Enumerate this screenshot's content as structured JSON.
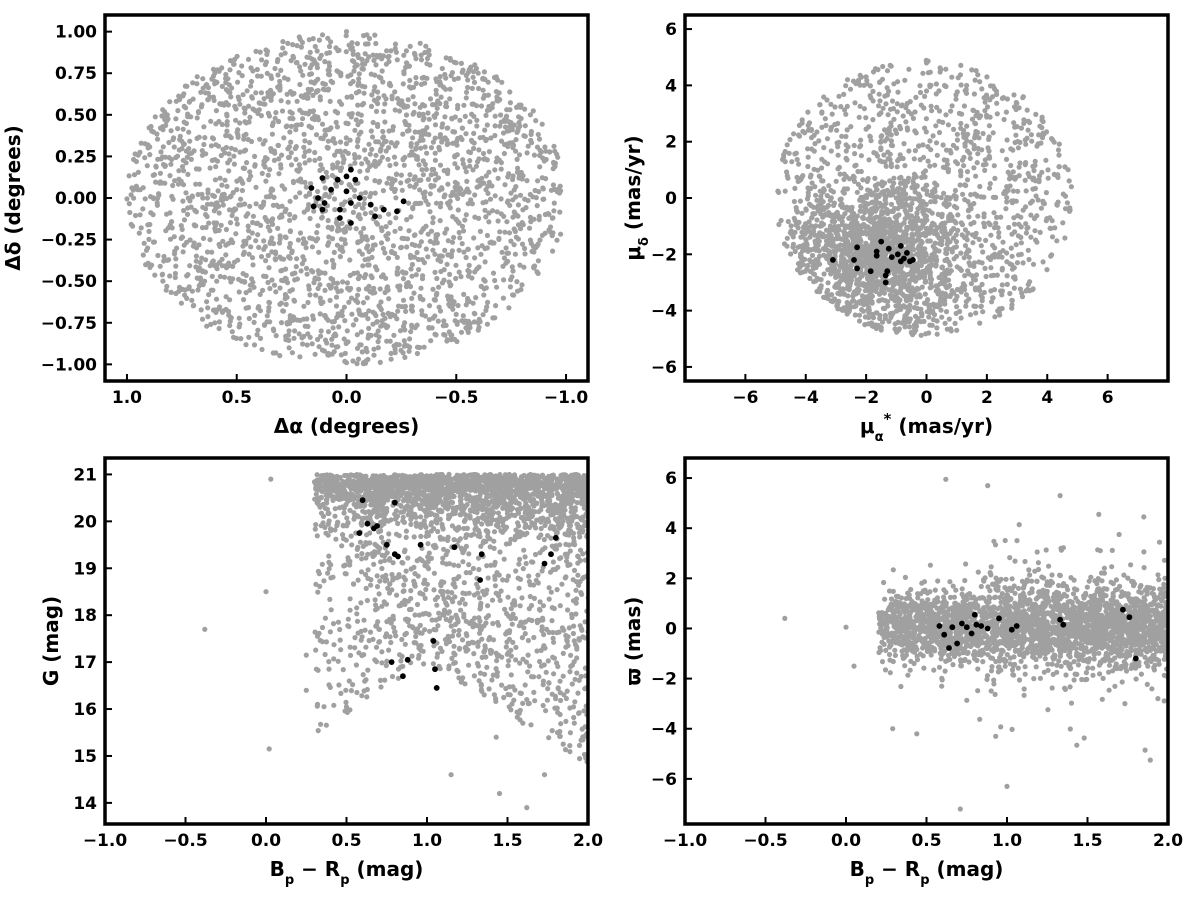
{
  "colors": {
    "field": "#a0a0a0",
    "members": "#000000",
    "frame": "#000000",
    "background": "#ffffff"
  },
  "panels": [
    {
      "id": "position",
      "x_label_parts": [
        {
          "t": "Δα (degrees)"
        }
      ],
      "y_label_parts": [
        {
          "t": "Δδ (degrees)"
        }
      ],
      "xlim": [
        1.1,
        -1.1
      ],
      "ylim": [
        -1.1,
        1.1
      ],
      "xticks": [
        1.0,
        0.5,
        0.0,
        -0.5,
        -1.0
      ],
      "xtick_labels": [
        "1.0",
        "0.5",
        "0.0",
        "−0.5",
        "−1.0"
      ],
      "yticks": [
        1.0,
        0.75,
        0.5,
        0.25,
        0.0,
        -0.25,
        -0.5,
        -0.75,
        -1.0
      ],
      "ytick_labels": [
        "1.00",
        "0.75",
        "0.50",
        "0.25",
        "0.00",
        "−0.25",
        "−0.50",
        "−0.75",
        "−1.00"
      ]
    },
    {
      "id": "proper-motion",
      "x_label_parts": [
        {
          "t": "μ"
        },
        {
          "t": "α",
          "sub": true
        },
        {
          "t": "*",
          "sup": true
        },
        {
          "t": "  (mas/yr)"
        }
      ],
      "y_label_parts": [
        {
          "t": "μ"
        },
        {
          "t": "δ",
          "sub": true
        },
        {
          "t": " (mas/yr)"
        }
      ],
      "xlim": [
        -8,
        8
      ],
      "ylim": [
        -6.5,
        6.5
      ],
      "xticks": [
        -6,
        -4,
        -2,
        0,
        2,
        4,
        6
      ],
      "xtick_labels": [
        "−6",
        "−4",
        "−2",
        "0",
        "2",
        "4",
        "6"
      ],
      "yticks": [
        6,
        4,
        2,
        0,
        -2,
        -4,
        -6
      ],
      "ytick_labels": [
        "6",
        "4",
        "2",
        "0",
        "−2",
        "−4",
        "−6"
      ]
    },
    {
      "id": "cmd",
      "x_label_parts": [
        {
          "t": "B"
        },
        {
          "t": "p",
          "sub": true
        },
        {
          "t": " − R"
        },
        {
          "t": "p",
          "sub": true
        },
        {
          "t": " (mag)"
        }
      ],
      "y_label_parts": [
        {
          "t": "G (mag)"
        }
      ],
      "xlim": [
        -1.0,
        2.0
      ],
      "ylim": [
        13.55,
        21.35
      ],
      "xticks": [
        -1.0,
        -0.5,
        0.0,
        0.5,
        1.0,
        1.5,
        2.0
      ],
      "xtick_labels": [
        "−1.0",
        "−0.5",
        "0.0",
        "0.5",
        "1.0",
        "1.5",
        "2.0"
      ],
      "yticks": [
        21,
        20,
        19,
        18,
        17,
        16,
        15,
        14
      ],
      "ytick_labels": [
        "21",
        "20",
        "19",
        "18",
        "17",
        "16",
        "15",
        "14"
      ]
    },
    {
      "id": "parallax",
      "x_label_parts": [
        {
          "t": "B"
        },
        {
          "t": "p",
          "sub": true
        },
        {
          "t": " − R"
        },
        {
          "t": "p",
          "sub": true
        },
        {
          "t": " (mag)"
        }
      ],
      "y_label_parts": [
        {
          "t": "ϖ (mas)"
        }
      ],
      "xlim": [
        -1.0,
        2.0
      ],
      "ylim": [
        -7.8,
        6.8
      ],
      "xticks": [
        -1.0,
        -0.5,
        0.0,
        0.5,
        1.0,
        1.5,
        2.0
      ],
      "xtick_labels": [
        "−1.0",
        "−0.5",
        "0.0",
        "0.5",
        "1.0",
        "1.5",
        "2.0"
      ],
      "yticks": [
        6,
        4,
        2,
        0,
        -2,
        -4,
        -6
      ],
      "ytick_labels": [
        "6",
        "4",
        "2",
        "0",
        "−2",
        "−4",
        "−6"
      ]
    }
  ],
  "chart_data": [
    {
      "type": "scatter",
      "xlabel": "Δα (degrees)",
      "ylabel": "Δδ (degrees)",
      "xlim": [
        1.1,
        -1.1
      ],
      "ylim": [
        -1.1,
        1.1
      ],
      "grid": false,
      "series": [
        {
          "role": "field",
          "color": "#a0a0a0",
          "count_estimate": 2500,
          "distribution": {
            "shape": "uniform-ellipse",
            "center": [
              0,
              0
            ],
            "half_width": 1.0,
            "half_height": 1.0
          },
          "points": [
            [
              0.95,
              0.05
            ],
            [
              -0.97,
              0.03
            ],
            [
              0.0,
              1.0
            ],
            [
              0.0,
              -0.99
            ],
            [
              0.6,
              0.75
            ],
            [
              -0.6,
              0.75
            ],
            [
              0.6,
              -0.75
            ],
            [
              -0.6,
              -0.75
            ],
            [
              0.3,
              0.2
            ],
            [
              -0.3,
              -0.4
            ]
          ]
        },
        {
          "role": "members",
          "color": "#000000",
          "points": [
            [
              0.16,
              0.06
            ],
            [
              0.11,
              0.12
            ],
            [
              0.07,
              0.05
            ],
            [
              0.04,
              0.11
            ],
            [
              0.0,
              0.13
            ],
            [
              -0.02,
              0.17
            ],
            [
              -0.04,
              0.11
            ],
            [
              0.13,
              0.0
            ],
            [
              0.15,
              -0.05
            ],
            [
              0.1,
              -0.03
            ],
            [
              0.11,
              -0.07
            ],
            [
              0.03,
              -0.07
            ],
            [
              -0.02,
              -0.03
            ],
            [
              0.03,
              -0.12
            ],
            [
              0.0,
              0.04
            ],
            [
              -0.02,
              -0.15
            ],
            [
              -0.06,
              0.0
            ],
            [
              -0.11,
              -0.04
            ],
            [
              -0.13,
              -0.11
            ],
            [
              -0.17,
              -0.07
            ],
            [
              -0.23,
              -0.08
            ],
            [
              -0.26,
              -0.02
            ]
          ]
        }
      ]
    },
    {
      "type": "scatter",
      "xlabel": "μα* (mas/yr)",
      "ylabel": "μδ (mas/yr)",
      "xlim": [
        -8,
        8
      ],
      "ylim": [
        -6.5,
        6.5
      ],
      "grid": false,
      "series": [
        {
          "role": "field",
          "color": "#a0a0a0",
          "count_estimate": 2500,
          "distribution": {
            "shape": "clipped-disc",
            "center": [
              -0.1,
              0.0
            ],
            "radius": 4.9,
            "clip_y": [
              -4.9,
              4.9
            ],
            "dense_center": [
              -1.5,
              -2.0
            ]
          },
          "points": [
            [
              -4.9,
              0.2
            ],
            [
              4.8,
              0.4
            ],
            [
              0.0,
              4.8
            ],
            [
              -2.0,
              4.3
            ],
            [
              2.0,
              4.3
            ],
            [
              -1.5,
              -4.6
            ],
            [
              1.0,
              -4.7
            ],
            [
              3.3,
              -3.3
            ],
            [
              -3.5,
              -3.2
            ],
            [
              -1.0,
              0.0
            ]
          ]
        },
        {
          "role": "members",
          "color": "#000000",
          "points": [
            [
              -3.1,
              -2.2
            ],
            [
              -2.4,
              -2.2
            ],
            [
              -2.3,
              -2.5
            ],
            [
              -2.3,
              -1.75
            ],
            [
              -1.85,
              -2.6
            ],
            [
              -1.65,
              -2.05
            ],
            [
              -1.65,
              -1.9
            ],
            [
              -1.5,
              -1.55
            ],
            [
              -1.35,
              -2.75
            ],
            [
              -1.3,
              -2.6
            ],
            [
              -1.35,
              -3.0
            ],
            [
              -1.25,
              -1.8
            ],
            [
              -1.15,
              -2.1
            ],
            [
              -0.95,
              -2.0
            ],
            [
              -0.85,
              -1.7
            ],
            [
              -0.85,
              -2.25
            ],
            [
              -0.75,
              -2.15
            ],
            [
              -0.65,
              -1.95
            ],
            [
              -0.55,
              -2.25
            ],
            [
              -0.45,
              -2.2
            ]
          ]
        }
      ]
    },
    {
      "type": "scatter",
      "xlabel": "Bp − Rp (mag)",
      "ylabel": "G (mag)",
      "xlim": [
        -1.0,
        2.0
      ],
      "ylim": [
        13.55,
        21.35
      ],
      "y_inverted": false,
      "grid": false,
      "series": [
        {
          "role": "field",
          "color": "#a0a0a0",
          "count_estimate": 2800,
          "distribution": {
            "shape": "wedge",
            "top_band": [
              20.0,
              21.0
            ],
            "faint_limit": 21.0
          },
          "points": [
            [
              -0.38,
              17.7
            ],
            [
              0.02,
              15.15
            ],
            [
              0.0,
              18.5
            ],
            [
              0.03,
              20.9
            ],
            [
              0.25,
              17.15
            ],
            [
              0.25,
              16.4
            ],
            [
              0.32,
              17.55
            ],
            [
              0.32,
              16.1
            ],
            [
              1.43,
              15.4
            ],
            [
              1.62,
              13.9
            ],
            [
              1.73,
              14.6
            ],
            [
              1.15,
              14.6
            ],
            [
              1.45,
              14.2
            ]
          ]
        },
        {
          "role": "members",
          "color": "#000000",
          "points": [
            [
              0.6,
              20.45
            ],
            [
              0.8,
              20.4
            ],
            [
              0.63,
              19.95
            ],
            [
              0.67,
              19.85
            ],
            [
              0.69,
              19.9
            ],
            [
              0.58,
              19.75
            ],
            [
              0.75,
              19.5
            ],
            [
              0.8,
              19.3
            ],
            [
              0.82,
              19.25
            ],
            [
              0.96,
              19.5
            ],
            [
              1.17,
              19.45
            ],
            [
              1.34,
              19.3
            ],
            [
              1.33,
              18.75
            ],
            [
              1.73,
              19.1
            ],
            [
              1.77,
              19.3
            ],
            [
              1.8,
              19.65
            ],
            [
              0.78,
              17.0
            ],
            [
              0.88,
              17.05
            ],
            [
              1.04,
              17.45
            ],
            [
              1.05,
              16.85
            ],
            [
              0.85,
              16.7
            ],
            [
              1.06,
              16.45
            ]
          ]
        }
      ]
    },
    {
      "type": "scatter",
      "xlabel": "Bp − Rp (mag)",
      "ylabel": "ϖ (mas)",
      "xlim": [
        -1.0,
        2.0
      ],
      "ylim": [
        -7.8,
        6.8
      ],
      "grid": false,
      "series": [
        {
          "role": "field",
          "color": "#a0a0a0",
          "count_estimate": 2800,
          "distribution": {
            "shape": "horizontal-band",
            "center_y": 0.1,
            "band_sigma": 0.8,
            "x_range": [
              0.2,
              2.0
            ]
          },
          "points": [
            [
              -0.38,
              0.4
            ],
            [
              0.0,
              0.05
            ],
            [
              0.05,
              -1.5
            ],
            [
              0.62,
              5.95
            ],
            [
              0.88,
              5.7
            ],
            [
              1.33,
              5.3
            ],
            [
              1.57,
              4.55
            ],
            [
              1.85,
              4.45
            ],
            [
              1.89,
              -5.25
            ],
            [
              1.0,
              -6.3
            ],
            [
              0.71,
              -7.2
            ],
            [
              0.29,
              -4.0
            ],
            [
              0.44,
              -4.2
            ],
            [
              0.93,
              -4.3
            ]
          ]
        },
        {
          "role": "members",
          "color": "#000000",
          "points": [
            [
              0.58,
              0.1
            ],
            [
              0.61,
              -0.25
            ],
            [
              0.64,
              -0.78
            ],
            [
              0.66,
              0.05
            ],
            [
              0.69,
              -0.6
            ],
            [
              0.72,
              0.2
            ],
            [
              0.75,
              0.05
            ],
            [
              0.78,
              -0.2
            ],
            [
              0.8,
              0.55
            ],
            [
              0.81,
              0.15
            ],
            [
              0.84,
              0.1
            ],
            [
              0.88,
              0.0
            ],
            [
              0.95,
              0.4
            ],
            [
              1.03,
              -0.05
            ],
            [
              1.06,
              0.1
            ],
            [
              1.33,
              0.35
            ],
            [
              1.35,
              0.15
            ],
            [
              1.72,
              0.75
            ],
            [
              1.76,
              0.45
            ],
            [
              1.8,
              -1.2
            ]
          ]
        }
      ]
    }
  ]
}
